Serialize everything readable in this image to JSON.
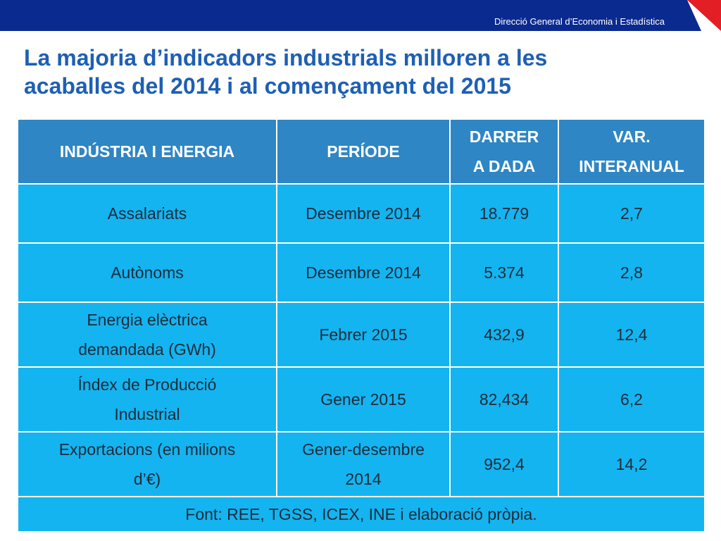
{
  "header": {
    "organization": "Direcció General d’Economia i Estadística",
    "accent_color": "#e31e24",
    "bar_color": "#0b2a8f"
  },
  "title": {
    "line1": "La majoria d’indicadors industrials milloren a les",
    "line2": "acaballes del 2014 i al començament del 2015"
  },
  "table": {
    "headers": {
      "indicator": "INDÚSTRIA I ENERGIA",
      "period": "PERÍODE",
      "latest_line1": "DARRER",
      "latest_line2": "A DADA",
      "yoy_line1": "VAR.",
      "yoy_line2": "INTERANUAL"
    },
    "rows": [
      {
        "indicator_1": "Assalariats",
        "indicator_2": "",
        "period_1": "Desembre 2014",
        "period_2": "",
        "latest": "18.779",
        "yoy": "2,7"
      },
      {
        "indicator_1": "Autònoms",
        "indicator_2": "",
        "period_1": "Desembre 2014",
        "period_2": "",
        "latest": "5.374",
        "yoy": "2,8"
      },
      {
        "indicator_1": "Energia elèctrica",
        "indicator_2": "demandada (GWh)",
        "period_1": "Febrer 2015",
        "period_2": "",
        "latest": "432,9",
        "yoy": "12,4"
      },
      {
        "indicator_1": "Índex de Producció",
        "indicator_2": "Industrial",
        "period_1": "Gener 2015",
        "period_2": "",
        "latest": "82,434",
        "yoy": "6,2"
      },
      {
        "indicator_1": "Exportacions (en milions",
        "indicator_2": "d’€)",
        "period_1": "Gener-desembre",
        "period_2": "2014",
        "latest": "952,4",
        "yoy": "14,2"
      }
    ],
    "source": "Font: REE, TGSS, ICEX, INE i elaboració pròpia."
  }
}
